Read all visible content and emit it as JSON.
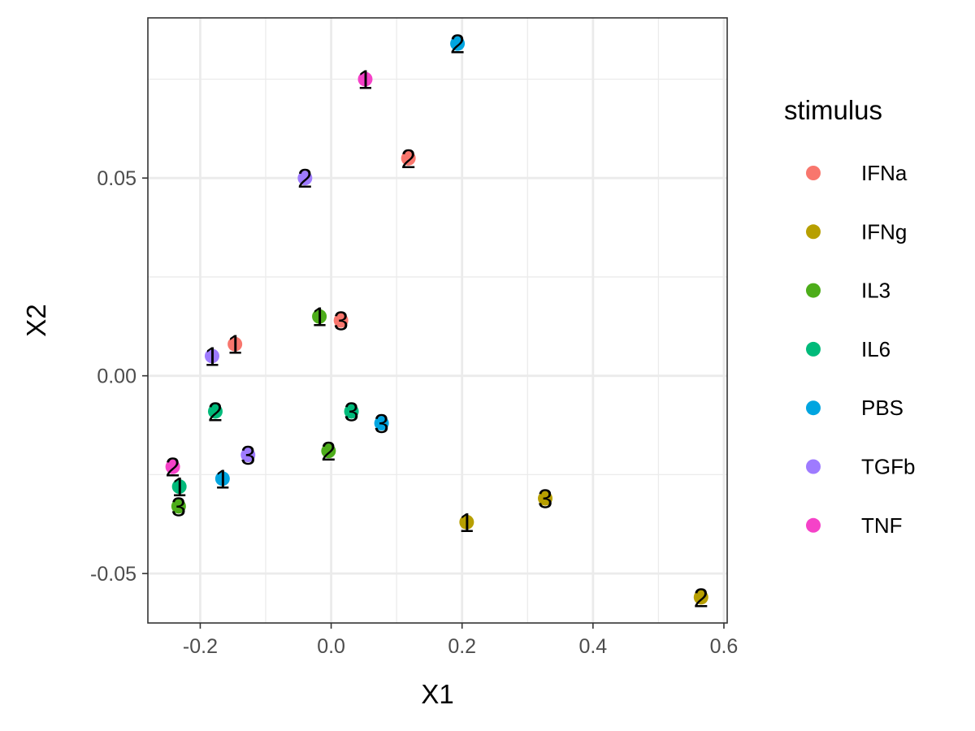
{
  "chart_data": {
    "type": "scatter",
    "xlabel": "X1",
    "ylabel": "X2",
    "xlim": [
      -0.28,
      0.605
    ],
    "ylim": [
      -0.0625,
      0.0905
    ],
    "x_ticks": [
      -0.2,
      0.0,
      0.2,
      0.4,
      0.6
    ],
    "x_tick_labels": [
      "-0.2",
      "0.0",
      "0.2",
      "0.4",
      "0.6"
    ],
    "y_ticks": [
      -0.05,
      0.0,
      0.05
    ],
    "y_tick_labels": [
      "-0.05",
      "0.00",
      "0.05"
    ],
    "grid": true,
    "legend": {
      "title": "stimulus",
      "position": "right"
    },
    "series": [
      {
        "name": "IFNa",
        "color": "#F8766D",
        "points": [
          {
            "x": 0.118,
            "y": 0.055,
            "label": "2"
          },
          {
            "x": 0.015,
            "y": 0.014,
            "label": "3"
          },
          {
            "x": -0.147,
            "y": 0.008,
            "label": "1"
          }
        ]
      },
      {
        "name": "IFNg",
        "color": "#B79F00",
        "points": [
          {
            "x": 0.207,
            "y": -0.037,
            "label": "1"
          },
          {
            "x": 0.327,
            "y": -0.031,
            "label": "3"
          },
          {
            "x": 0.565,
            "y": -0.056,
            "label": "2"
          }
        ]
      },
      {
        "name": "IL3",
        "color": "#4DAD1A",
        "points": [
          {
            "x": -0.018,
            "y": 0.015,
            "label": "1"
          },
          {
            "x": -0.004,
            "y": -0.019,
            "label": "2"
          },
          {
            "x": -0.233,
            "y": -0.033,
            "label": "3"
          }
        ]
      },
      {
        "name": "IL6",
        "color": "#00BA7A",
        "points": [
          {
            "x": -0.177,
            "y": -0.009,
            "label": "2"
          },
          {
            "x": 0.031,
            "y": -0.009,
            "label": "3"
          },
          {
            "x": -0.232,
            "y": -0.028,
            "label": "1"
          }
        ]
      },
      {
        "name": "PBS",
        "color": "#00A5E0",
        "points": [
          {
            "x": 0.193,
            "y": 0.084,
            "label": "2"
          },
          {
            "x": 0.077,
            "y": -0.012,
            "label": "3"
          },
          {
            "x": -0.166,
            "y": -0.026,
            "label": "1"
          }
        ]
      },
      {
        "name": "TGFb",
        "color": "#9E7BFF",
        "points": [
          {
            "x": -0.04,
            "y": 0.05,
            "label": "2"
          },
          {
            "x": -0.182,
            "y": 0.005,
            "label": "1"
          },
          {
            "x": -0.127,
            "y": -0.02,
            "label": "3"
          }
        ]
      },
      {
        "name": "TNF",
        "color": "#F542C8",
        "points": [
          {
            "x": 0.052,
            "y": 0.075,
            "label": "1"
          },
          {
            "x": -0.242,
            "y": -0.023,
            "label": "2"
          }
        ]
      }
    ]
  }
}
